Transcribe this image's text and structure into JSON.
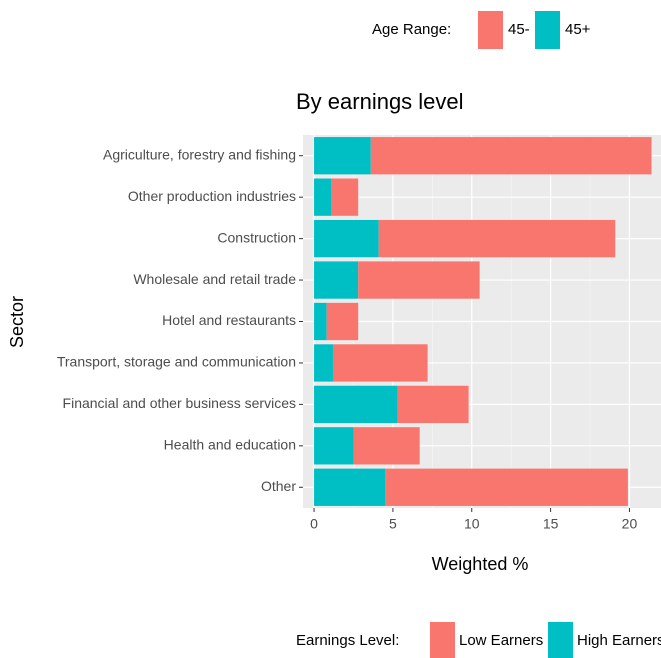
{
  "chart_data": {
    "type": "stacked_barh",
    "title": "By earnings level",
    "xlabel": "Weighted %",
    "ylabel": "Sector",
    "categories": [
      "Agriculture, forestry and fishing",
      "Other production industries",
      "Construction",
      "Wholesale and retail trade",
      "Hotel and restaurants",
      "Transport, storage and communication",
      "Financial and other business services",
      "Health and education",
      "Other"
    ],
    "series": [
      {
        "name": "45+",
        "color": "#00BFC4",
        "values": [
          3.6,
          1.1,
          4.1,
          2.8,
          0.8,
          1.2,
          5.3,
          2.5,
          4.5
        ]
      },
      {
        "name": "45-",
        "color": "#F8766D",
        "values": [
          17.8,
          1.7,
          15.0,
          7.7,
          2.0,
          6.0,
          4.5,
          4.2,
          15.4
        ]
      }
    ],
    "legend_title": "Age Range:",
    "legend_order": [
      1,
      0
    ],
    "legend2": {
      "title": "Earnings Level:",
      "entries": [
        {
          "name": "Low Earners",
          "color": "#F8766D"
        },
        {
          "name": "High Earners",
          "color": "#00BFC4"
        }
      ]
    },
    "xlim": [
      -0.7,
      22.0
    ],
    "xticks": [
      0,
      5,
      10,
      15,
      20
    ],
    "grid": true
  }
}
